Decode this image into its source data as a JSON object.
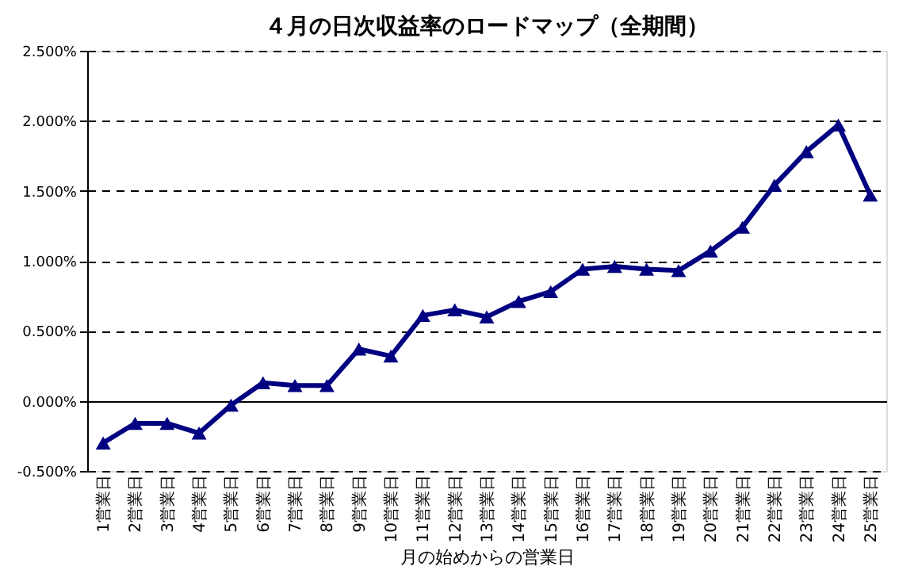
{
  "chart_data": {
    "type": "line",
    "title": "４月の日次収益率のロードマップ（全期間）",
    "xlabel": "月の始めからの営業日",
    "categories": [
      "1営業日",
      "2営業日",
      "3営業日",
      "4営業日",
      "5営業日",
      "6営業日",
      "7営業日",
      "8営業日",
      "9営業日",
      "10営業日",
      "11営業日",
      "12営業日",
      "13営業日",
      "14営業日",
      "15営業日",
      "16営業日",
      "17営業日",
      "18営業日",
      "19営業日",
      "20営業日",
      "21営業日",
      "22営業日",
      "23営業日",
      "24営業日",
      "25営業日"
    ],
    "series": [
      {
        "color": "#000080",
        "values": [
          -0.3,
          -0.16,
          -0.16,
          -0.23,
          -0.03,
          0.13,
          0.11,
          0.11,
          0.37,
          0.32,
          0.61,
          0.65,
          0.6,
          0.71,
          0.78,
          0.94,
          0.96,
          0.94,
          0.93,
          1.07,
          1.24,
          1.54,
          1.78,
          1.97,
          1.47
        ]
      }
    ],
    "ylim": [
      -0.5,
      2.5
    ],
    "yticks": [
      {
        "value": -0.5,
        "label": "-0.500%"
      },
      {
        "value": 0,
        "label": "0.000%"
      },
      {
        "value": 0.5,
        "label": "0.500%"
      },
      {
        "value": 1,
        "label": "1.000%"
      },
      {
        "value": 1.5,
        "label": "1.500%"
      },
      {
        "value": 2,
        "label": "2.000%"
      },
      {
        "value": 2.5,
        "label": "2.500%"
      }
    ],
    "grid": "y",
    "marker": "triangle",
    "line_style": "solid"
  }
}
